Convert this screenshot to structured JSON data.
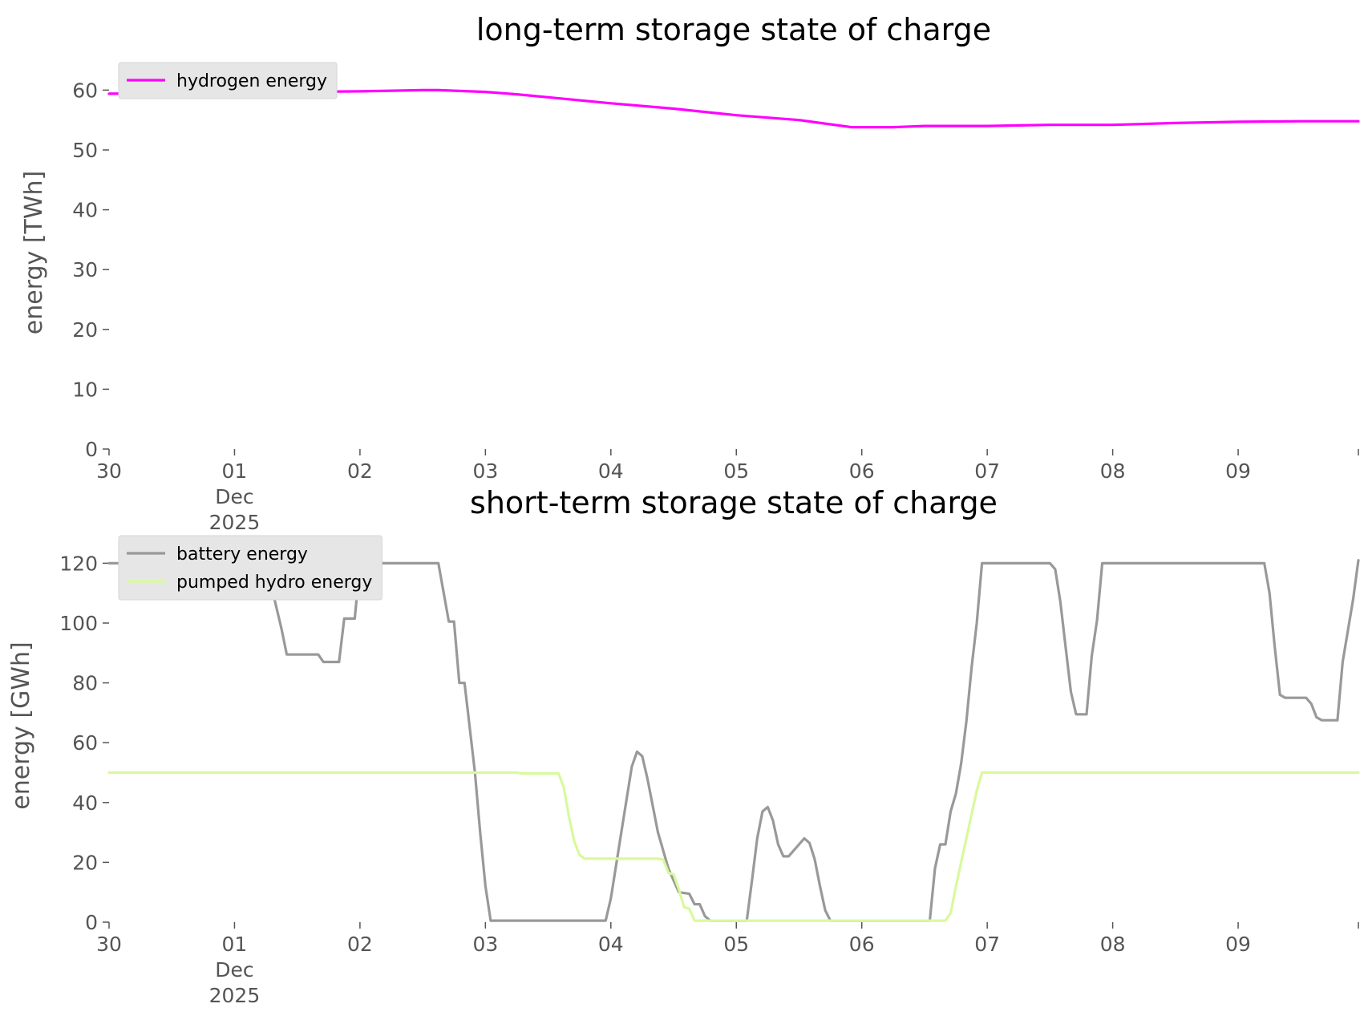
{
  "chart_data": [
    {
      "type": "line",
      "title": "long-term storage state of charge",
      "xlabel": "",
      "ylabel": "energy [TWh]",
      "ylim": [
        0,
        63
      ],
      "xlim": [
        "2025-11-30",
        "2025-12-09 23:00"
      ],
      "x_ticks": [
        {
          "value": "2025-11-30",
          "lines": [
            "30"
          ]
        },
        {
          "value": "2025-12-01",
          "lines": [
            "01",
            "Dec",
            "2025"
          ]
        },
        {
          "value": "2025-12-02",
          "lines": [
            "02"
          ]
        },
        {
          "value": "2025-12-03",
          "lines": [
            "03"
          ]
        },
        {
          "value": "2025-12-04",
          "lines": [
            "04"
          ]
        },
        {
          "value": "2025-12-05",
          "lines": [
            "05"
          ]
        },
        {
          "value": "2025-12-06",
          "lines": [
            "06"
          ]
        },
        {
          "value": "2025-12-07",
          "lines": [
            "07"
          ]
        },
        {
          "value": "2025-12-08",
          "lines": [
            "08"
          ]
        },
        {
          "value": "2025-12-09",
          "lines": [
            "09"
          ]
        }
      ],
      "y_ticks": [
        "0",
        "10",
        "20",
        "30",
        "40",
        "50",
        "60"
      ],
      "grid": false,
      "legend_position": "top-left",
      "series": [
        {
          "name": "hydrogen energy",
          "color": "#ff00ff",
          "points": [
            [
              "2025-11-30 00:00",
              59.4
            ],
            [
              "2025-11-30 12:00",
              59.5
            ],
            [
              "2025-12-01 00:00",
              59.6
            ],
            [
              "2025-12-01 12:00",
              59.7
            ],
            [
              "2025-12-02 00:00",
              59.8
            ],
            [
              "2025-12-02 12:00",
              60.0
            ],
            [
              "2025-12-02 15:00",
              60.0
            ],
            [
              "2025-12-03 00:00",
              59.7
            ],
            [
              "2025-12-03 06:00",
              59.3
            ],
            [
              "2025-12-03 12:00",
              58.8
            ],
            [
              "2025-12-04 00:00",
              57.8
            ],
            [
              "2025-12-04 12:00",
              56.9
            ],
            [
              "2025-12-05 00:00",
              55.8
            ],
            [
              "2025-12-05 12:00",
              55.0
            ],
            [
              "2025-12-05 22:00",
              53.8
            ],
            [
              "2025-12-06 06:00",
              53.8
            ],
            [
              "2025-12-06 12:00",
              54.0
            ],
            [
              "2025-12-07 00:00",
              54.0
            ],
            [
              "2025-12-07 12:00",
              54.2
            ],
            [
              "2025-12-08 00:00",
              54.2
            ],
            [
              "2025-12-08 12:00",
              54.5
            ],
            [
              "2025-12-09 00:00",
              54.7
            ],
            [
              "2025-12-09 12:00",
              54.8
            ],
            [
              "2025-12-09 23:00",
              54.8
            ]
          ]
        }
      ]
    },
    {
      "type": "line",
      "title": "short-term storage state of charge",
      "xlabel": "",
      "ylabel": "energy [GWh]",
      "ylim": [
        0,
        126
      ],
      "xlim": [
        "2025-11-30",
        "2025-12-09 23:00"
      ],
      "x_ticks": [
        {
          "value": "2025-11-30",
          "lines": [
            "30"
          ]
        },
        {
          "value": "2025-12-01",
          "lines": [
            "01",
            "Dec",
            "2025"
          ]
        },
        {
          "value": "2025-12-02",
          "lines": [
            "02"
          ]
        },
        {
          "value": "2025-12-03",
          "lines": [
            "03"
          ]
        },
        {
          "value": "2025-12-04",
          "lines": [
            "04"
          ]
        },
        {
          "value": "2025-12-05",
          "lines": [
            "05"
          ]
        },
        {
          "value": "2025-12-06",
          "lines": [
            "06"
          ]
        },
        {
          "value": "2025-12-07",
          "lines": [
            "07"
          ]
        },
        {
          "value": "2025-12-08",
          "lines": [
            "08"
          ]
        },
        {
          "value": "2025-12-09",
          "lines": [
            "09"
          ]
        }
      ],
      "y_ticks": [
        "0",
        "20",
        "40",
        "60",
        "80",
        "100",
        "120"
      ],
      "grid": false,
      "legend_position": "top-left",
      "series": [
        {
          "name": "battery energy",
          "color": "#999999",
          "points": [
            [
              "2025-11-30 00:00",
              120
            ],
            [
              "2025-12-01 06:00",
              120
            ],
            [
              "2025-12-01 09:00",
              98
            ],
            [
              "2025-12-01 10:00",
              89.5
            ],
            [
              "2025-12-01 16:00",
              89.5
            ],
            [
              "2025-12-01 17:00",
              87
            ],
            [
              "2025-12-01 20:00",
              87
            ],
            [
              "2025-12-01 21:00",
              101.5
            ],
            [
              "2025-12-01 23:00",
              101.5
            ],
            [
              "2025-12-02 00:00",
              120
            ],
            [
              "2025-12-02 15:00",
              120
            ],
            [
              "2025-12-02 17:00",
              100.5
            ],
            [
              "2025-12-02 18:00",
              100.5
            ],
            [
              "2025-12-02 19:00",
              80
            ],
            [
              "2025-12-02 20:00",
              80
            ],
            [
              "2025-12-02 22:00",
              50
            ],
            [
              "2025-12-02 23:00",
              30
            ],
            [
              "2025-12-03 00:00",
              12
            ],
            [
              "2025-12-03 01:00",
              0.5
            ],
            [
              "2025-12-03 12:00",
              0.5
            ],
            [
              "2025-12-03 23:00",
              0.5
            ],
            [
              "2025-12-04 00:00",
              8
            ],
            [
              "2025-12-04 02:00",
              30
            ],
            [
              "2025-12-04 04:00",
              52
            ],
            [
              "2025-12-04 05:00",
              57
            ],
            [
              "2025-12-04 06:00",
              55.5
            ],
            [
              "2025-12-04 07:00",
              48
            ],
            [
              "2025-12-04 09:00",
              30
            ],
            [
              "2025-12-04 11:00",
              18
            ],
            [
              "2025-12-04 12:00",
              14
            ],
            [
              "2025-12-04 13:00",
              10
            ],
            [
              "2025-12-04 15:00",
              9.5
            ],
            [
              "2025-12-04 16:00",
              6
            ],
            [
              "2025-12-04 17:00",
              6
            ],
            [
              "2025-12-04 18:00",
              2
            ],
            [
              "2025-12-04 19:00",
              0.5
            ],
            [
              "2025-12-05 02:00",
              0.5
            ],
            [
              "2025-12-05 03:00",
              14
            ],
            [
              "2025-12-05 04:00",
              28
            ],
            [
              "2025-12-05 05:00",
              37
            ],
            [
              "2025-12-05 06:00",
              38.5
            ],
            [
              "2025-12-05 07:00",
              34
            ],
            [
              "2025-12-05 08:00",
              26
            ],
            [
              "2025-12-05 09:00",
              22
            ],
            [
              "2025-12-05 10:00",
              22
            ],
            [
              "2025-12-05 12:00",
              26
            ],
            [
              "2025-12-05 13:00",
              28
            ],
            [
              "2025-12-05 14:00",
              26.5
            ],
            [
              "2025-12-05 15:00",
              21
            ],
            [
              "2025-12-05 16:00",
              12
            ],
            [
              "2025-12-05 17:00",
              4
            ],
            [
              "2025-12-05 18:00",
              0.5
            ],
            [
              "2025-12-06 13:00",
              0.5
            ],
            [
              "2025-12-06 14:00",
              18
            ],
            [
              "2025-12-06 15:00",
              26
            ],
            [
              "2025-12-06 16:00",
              26
            ],
            [
              "2025-12-06 17:00",
              37
            ],
            [
              "2025-12-06 18:00",
              43
            ],
            [
              "2025-12-06 19:00",
              53
            ],
            [
              "2025-12-06 20:00",
              67
            ],
            [
              "2025-12-06 21:00",
              85
            ],
            [
              "2025-12-06 22:00",
              100
            ],
            [
              "2025-12-06 23:00",
              120
            ],
            [
              "2025-12-07 12:00",
              120
            ],
            [
              "2025-12-07 13:00",
              118
            ],
            [
              "2025-12-07 14:00",
              107
            ],
            [
              "2025-12-07 15:00",
              92
            ],
            [
              "2025-12-07 16:00",
              77
            ],
            [
              "2025-12-07 17:00",
              69.5
            ],
            [
              "2025-12-07 19:00",
              69.5
            ],
            [
              "2025-12-07 20:00",
              89
            ],
            [
              "2025-12-07 21:00",
              101
            ],
            [
              "2025-12-07 22:00",
              120
            ],
            [
              "2025-12-09 05:00",
              120
            ],
            [
              "2025-12-09 06:00",
              110
            ],
            [
              "2025-12-09 07:00",
              92
            ],
            [
              "2025-12-09 08:00",
              76
            ],
            [
              "2025-12-09 09:00",
              75
            ],
            [
              "2025-12-09 13:00",
              75
            ],
            [
              "2025-12-09 14:00",
              73
            ],
            [
              "2025-12-09 15:00",
              68.5
            ],
            [
              "2025-12-09 16:00",
              67.5
            ],
            [
              "2025-12-09 19:00",
              67.5
            ],
            [
              "2025-12-09 20:00",
              87
            ],
            [
              "2025-12-09 22:00",
              108
            ],
            [
              "2025-12-09 23:00",
              121
            ]
          ]
        },
        {
          "name": "pumped hydro energy",
          "color": "#d9f99d",
          "points": [
            [
              "2025-11-30 00:00",
              50
            ],
            [
              "2025-12-03 06:00",
              50
            ],
            [
              "2025-12-03 07:00",
              49.7
            ],
            [
              "2025-12-03 14:00",
              49.7
            ],
            [
              "2025-12-03 15:00",
              45
            ],
            [
              "2025-12-03 16:00",
              35
            ],
            [
              "2025-12-03 17:00",
              27
            ],
            [
              "2025-12-03 18:00",
              22.5
            ],
            [
              "2025-12-03 19:00",
              21.2
            ],
            [
              "2025-12-04 09:00",
              21.2
            ],
            [
              "2025-12-04 10:00",
              21
            ],
            [
              "2025-12-04 11:00",
              16.5
            ],
            [
              "2025-12-04 12:00",
              16
            ],
            [
              "2025-12-04 13:00",
              11
            ],
            [
              "2025-12-04 14:00",
              5
            ],
            [
              "2025-12-04 15:00",
              4.5
            ],
            [
              "2025-12-04 16:00",
              0.5
            ],
            [
              "2025-12-06 16:00",
              0.5
            ],
            [
              "2025-12-06 17:00",
              3
            ],
            [
              "2025-12-06 18:00",
              12
            ],
            [
              "2025-12-06 19:00",
              20
            ],
            [
              "2025-12-06 20:00",
              28
            ],
            [
              "2025-12-06 21:00",
              36
            ],
            [
              "2025-12-06 22:00",
              44
            ],
            [
              "2025-12-06 23:00",
              50
            ],
            [
              "2025-12-09 23:00",
              50
            ]
          ]
        }
      ]
    }
  ]
}
